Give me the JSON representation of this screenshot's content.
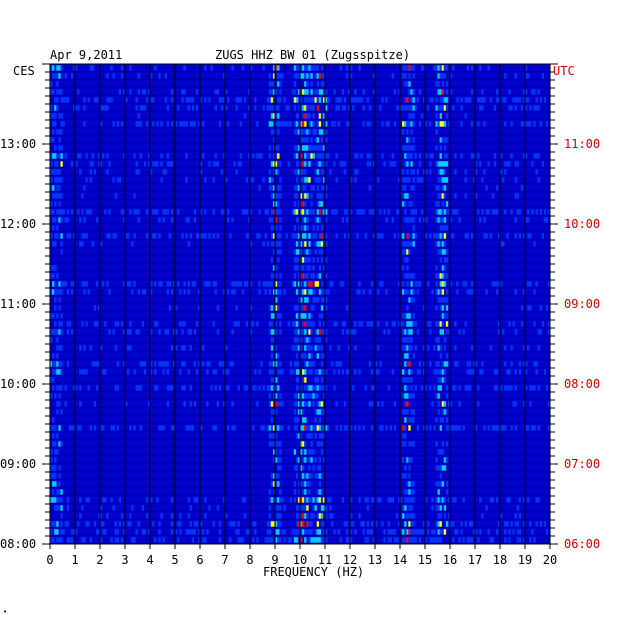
{
  "header": {
    "date": "Apr 9,2011",
    "station": "ZUGS HHZ BW 01 (Zugsspitze)"
  },
  "chart_data": {
    "type": "heatmap",
    "title": "ZUGS HHZ BW 01 (Zugsspitze)",
    "date": "Apr 9,2011",
    "xlabel": "FREQUENCY (HZ)",
    "xlim": [
      0,
      20
    ],
    "x_ticks": [
      "0",
      "1",
      "2",
      "3",
      "4",
      "5",
      "6",
      "7",
      "8",
      "9",
      "10",
      "11",
      "12",
      "13",
      "14",
      "15",
      "16",
      "17",
      "18",
      "19",
      "20"
    ],
    "left_axis": {
      "timezone": "CES",
      "ticks": [
        "13:00",
        "12:00",
        "11:00",
        "10:00",
        "09:00",
        "08:00"
      ]
    },
    "right_axis": {
      "timezone": "UTC",
      "ticks": [
        "11:00",
        "10:00",
        "09:00",
        "08:00",
        "07:00",
        "06:00"
      ]
    },
    "colors": {
      "background": "#0000cc",
      "low": "#0033ff",
      "mid": "#00ccff",
      "high": "#ffff00",
      "peak": "#ff0000",
      "right_axis": "#cc0000"
    },
    "dominant_lines_hz": [
      9.0,
      10.0,
      10.3,
      10.8,
      14.3,
      15.7
    ],
    "grid": "vertical lines every 1 Hz",
    "rows": 60
  }
}
